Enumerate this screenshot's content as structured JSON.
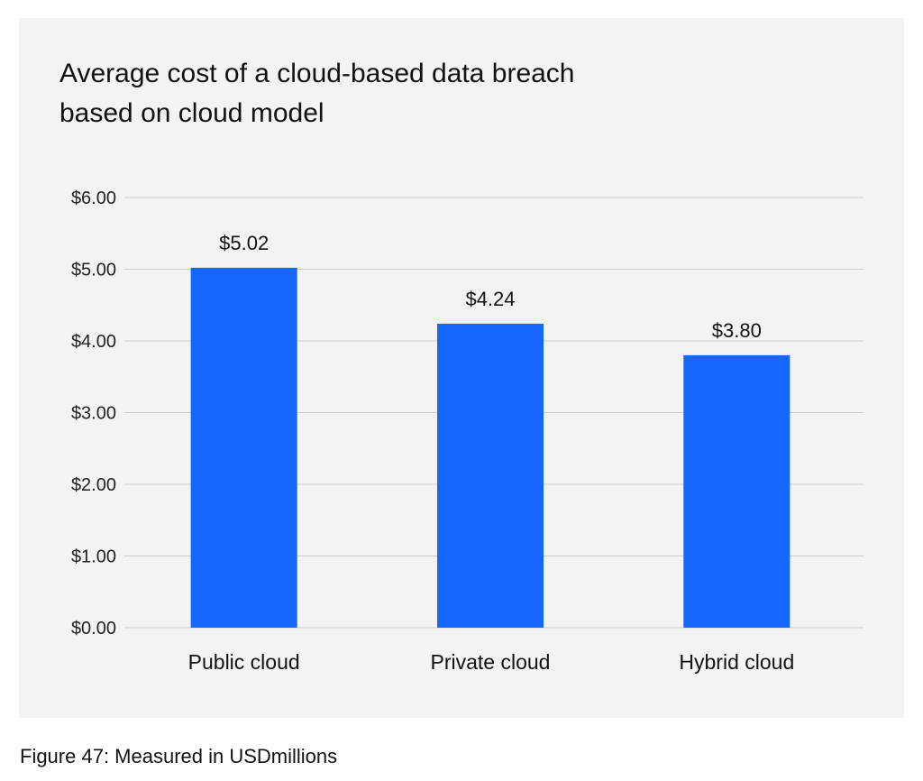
{
  "chart_data": {
    "type": "bar",
    "title_lines": [
      "Average cost of a cloud-based data breach",
      "based on cloud model"
    ],
    "categories": [
      "Public cloud",
      "Private cloud",
      "Hybrid cloud"
    ],
    "values": [
      5.02,
      4.24,
      3.8
    ],
    "data_labels": [
      "$5.02",
      "$4.24",
      "$3.80"
    ],
    "ylim": [
      0,
      6
    ],
    "y_ticks": [
      0,
      1,
      2,
      3,
      4,
      5,
      6
    ],
    "y_tick_labels": [
      "$0.00",
      "$1.00",
      "$2.00",
      "$3.00",
      "$4.00",
      "$5.00",
      "$6.00"
    ],
    "grid": true,
    "bar_color": "#1565ff",
    "grid_color": "#cccccc"
  },
  "caption": "Figure 47: Measured in USDmillions"
}
